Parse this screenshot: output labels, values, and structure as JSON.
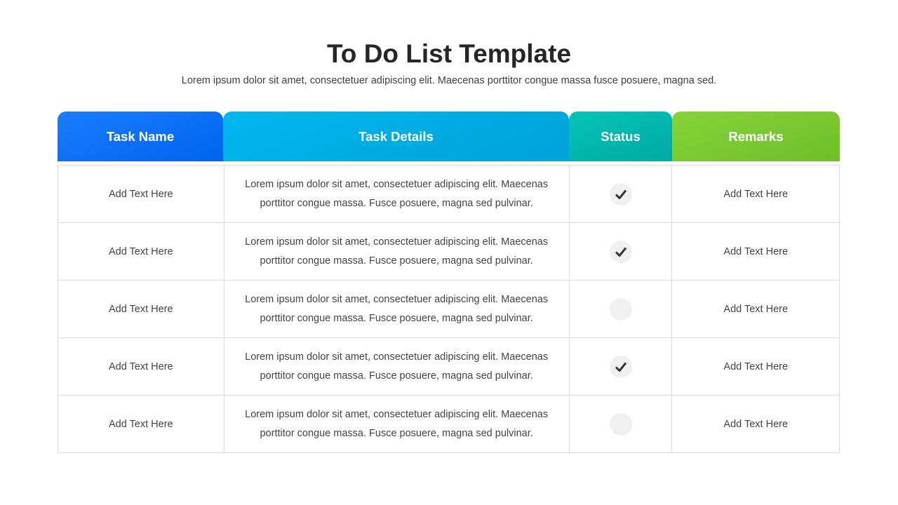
{
  "title": "To Do List Template",
  "subtitle": "Lorem ipsum dolor sit amet, consectetuer adipiscing elit. Maecenas porttitor congue massa fusce posuere, magna sed.",
  "columns": [
    "Task Name",
    "Task Details",
    "Status",
    "Remarks"
  ],
  "header_colors": [
    "#0a6ff7",
    "#00ade3",
    "#02b6ad",
    "#7ac832"
  ],
  "rows": [
    {
      "name": "Add Text Here",
      "details": "Lorem ipsum dolor sit amet, consectetuer adipiscing elit. Maecenas porttitor congue massa. Fusce posuere, magna sed pulvinar.",
      "done": true,
      "remarks": "Add Text Here"
    },
    {
      "name": "Add Text Here",
      "details": "Lorem ipsum dolor sit amet, consectetuer adipiscing elit. Maecenas porttitor congue massa. Fusce posuere, magna sed pulvinar.",
      "done": true,
      "remarks": "Add Text Here"
    },
    {
      "name": "Add Text Here",
      "details": "Lorem ipsum dolor sit amet, consectetuer adipiscing elit. Maecenas porttitor congue massa. Fusce posuere, magna sed pulvinar.",
      "done": false,
      "remarks": "Add Text Here"
    },
    {
      "name": "Add Text Here",
      "details": "Lorem ipsum dolor sit amet, consectetuer adipiscing elit. Maecenas porttitor congue massa. Fusce posuere, magna sed pulvinar.",
      "done": true,
      "remarks": "Add Text Here"
    },
    {
      "name": "Add Text Here",
      "details": "Lorem ipsum dolor sit amet, consectetuer adipiscing elit. Maecenas porttitor congue massa. Fusce posuere, magna sed pulvinar.",
      "done": false,
      "remarks": "Add Text Here"
    }
  ]
}
